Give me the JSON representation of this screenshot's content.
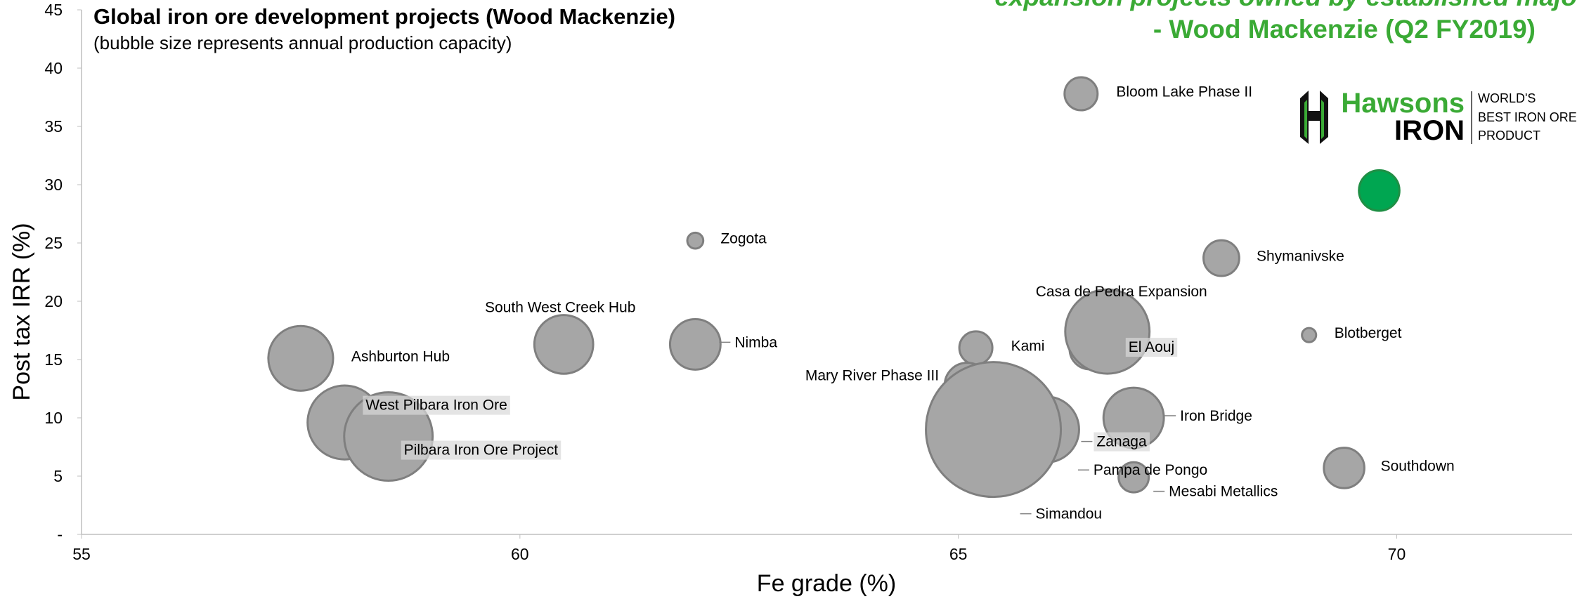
{
  "chart_data": {
    "type": "bubble",
    "title": "Global iron ore development projects (Wood Mackenzie)",
    "subtitle": "(bubble size represents annual production capacity)",
    "annotations": [
      "expansion projects owned by established majo",
      "- Wood Mackenzie (Q2 FY2019)"
    ],
    "logo": {
      "name": [
        "Hawsons",
        "IRON"
      ],
      "tagline": [
        "WORLD'S",
        "BEST IRON ORE",
        "PRODUCT"
      ]
    },
    "x_label": "Fe grade (%)",
    "y_label": "Post tax IRR (%)",
    "xlim": [
      55,
      72
    ],
    "ylim": [
      0,
      45
    ],
    "xticks": [
      55,
      60,
      65,
      70
    ],
    "yticks": [
      {
        "value": 0,
        "label": "-"
      },
      5,
      10,
      15,
      20,
      25,
      30,
      35,
      40,
      45
    ],
    "labels": [
      "Bloom Lake Phase II",
      null,
      "Zogota",
      "Shymanivske",
      "Blotberget",
      "Ashburton Hub",
      "South West Creek Hub",
      "Nimba",
      "Kami",
      "El Aouj",
      "Casa de Pedra Expansion",
      "West Pilbara Iron Ore",
      "Pilbara Iron Ore Project",
      "Iron Bridge",
      "Pampa de Pongo",
      "Zanaga",
      "Mary River Phase III",
      "Simandou",
      "Mesabi Metallics",
      "Southdown"
    ],
    "x": [
      66.4,
      69.8,
      62.0,
      68.0,
      69.0,
      57.5,
      60.5,
      62.0,
      65.2,
      66.5,
      66.7,
      58.0,
      58.5,
      67.0,
      65.9,
      66.0,
      65.1,
      65.4,
      67.0,
      69.4
    ],
    "y": [
      37.8,
      29.5,
      25.2,
      23.7,
      17.1,
      15.1,
      16.3,
      16.3,
      16.0,
      15.9,
      17.4,
      9.6,
      8.4,
      10.0,
      8.0,
      9.0,
      12.8,
      9.0,
      4.9,
      5.7
    ],
    "sizes": [
      6,
      9,
      1.4,
      7,
      1.1,
      23,
      19,
      14,
      6,
      9,
      39,
      30,
      43,
      20,
      14,
      24,
      11,
      100,
      5,
      9
    ],
    "colors": [
      "#a6a6a6",
      "#00a651",
      "#a6a6a6",
      "#a6a6a6",
      "#a6a6a6",
      "#a6a6a6",
      "#a6a6a6",
      "#a6a6a6",
      "#a6a6a6",
      "#a6a6a6",
      "#a6a6a6",
      "#a6a6a6",
      "#a6a6a6",
      "#a6a6a6",
      "#a6a6a6",
      "#a6a6a6",
      "#a6a6a6",
      "#a6a6a6",
      "#a6a6a6",
      "#a6a6a6"
    ]
  }
}
